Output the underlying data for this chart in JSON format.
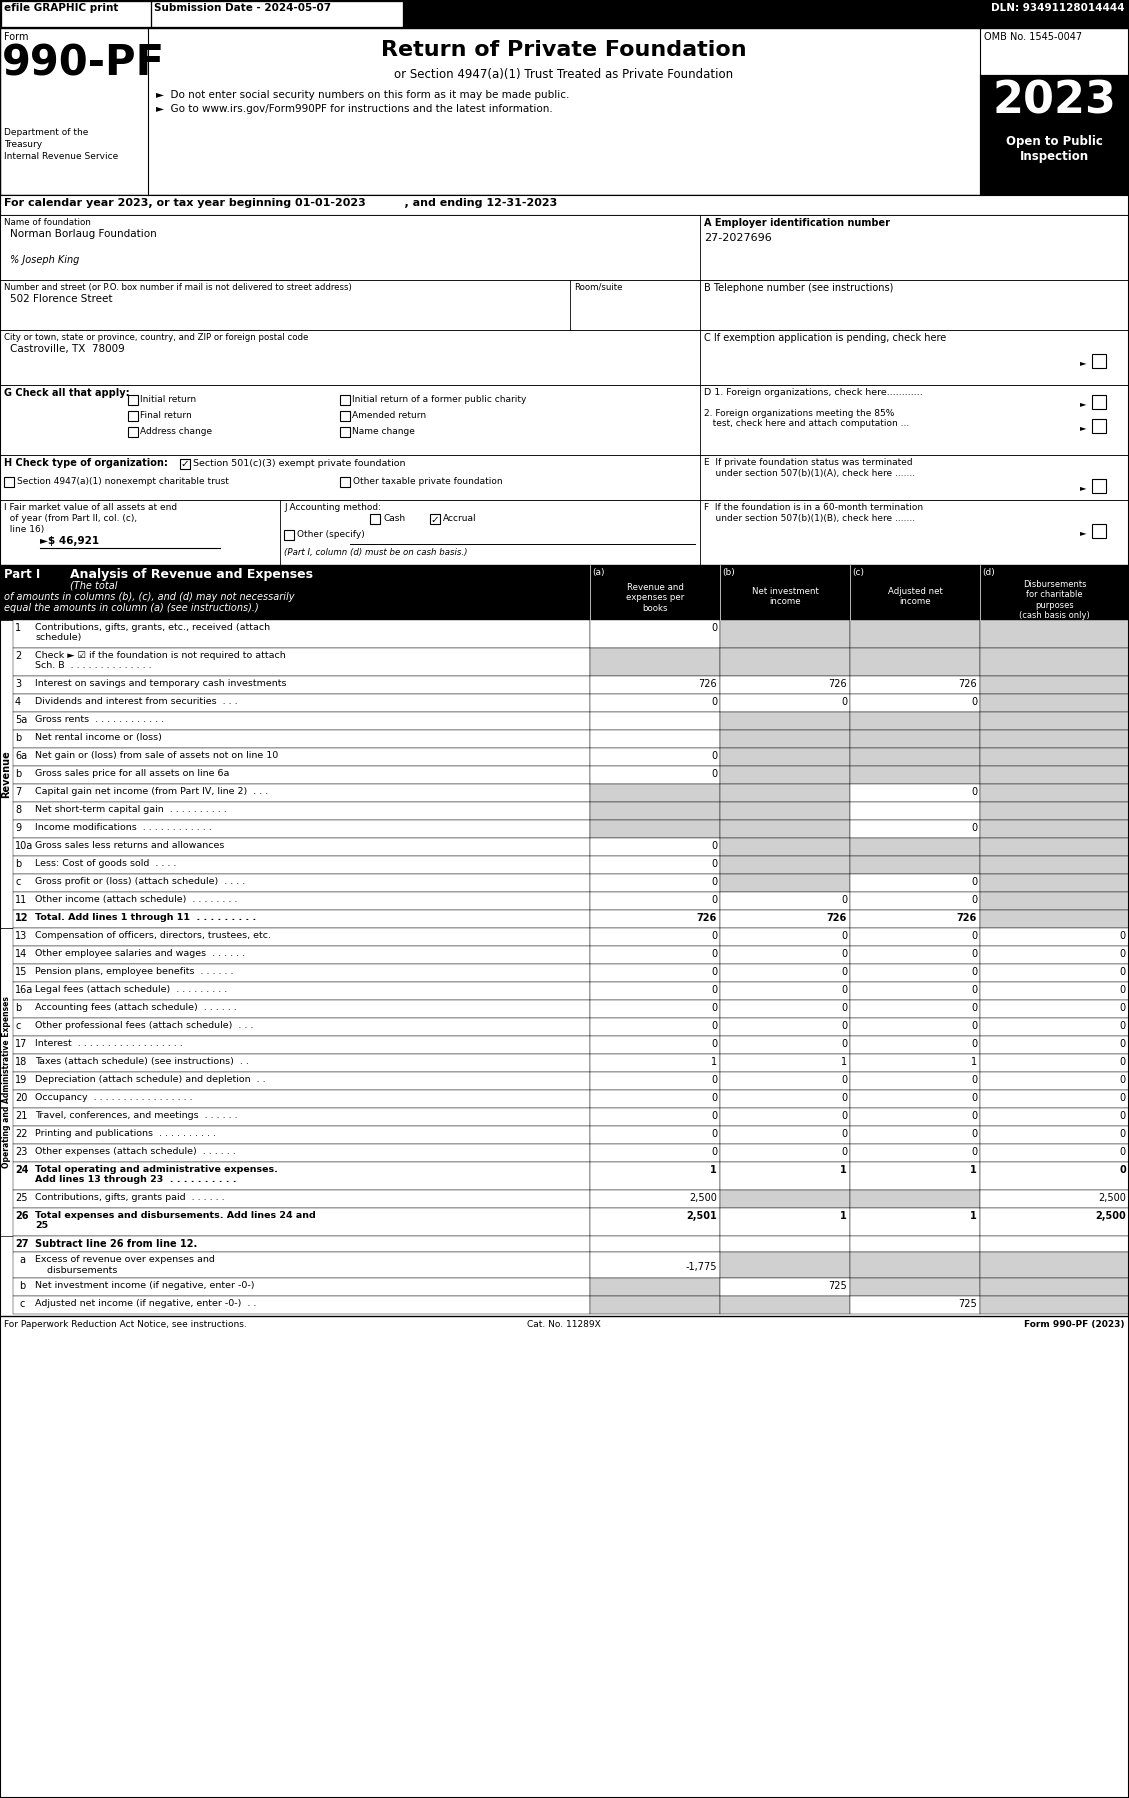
{
  "top_bar": {
    "efile": "efile GRAPHIC print",
    "submission": "Submission Date - 2024-05-07",
    "dln": "DLN: 93491128014444"
  },
  "form_number": "990-PF",
  "form_label": "Form",
  "form_title": "Return of Private Foundation",
  "form_subtitle": "or Section 4947(a)(1) Trust Treated as Private Foundation",
  "bullet1": "►  Do not enter social security numbers on this form as it may be made public.",
  "bullet2": "►  Go to www.irs.gov/Form990PF for instructions and the latest information.",
  "dept1": "Department of the",
  "dept2": "Treasury",
  "dept3": "Internal Revenue Service",
  "omb": "OMB No. 1545-0047",
  "year": "2023",
  "open_public": "Open to Public",
  "inspection": "Inspection",
  "calendar_line": "For calendar year 2023, or tax year beginning 01-01-2023          , and ending 12-31-2023",
  "name_label": "Name of foundation",
  "name_value": "Norman Borlaug Foundation",
  "care_of": "% Joseph King",
  "ein_label": "A Employer identification number",
  "ein_value": "27-2027696",
  "address_label": "Number and street (or P.O. box number if mail is not delivered to street address)",
  "room_label": "Room/suite",
  "address_value": "502 Florence Street",
  "phone_label": "B Telephone number (see instructions)",
  "city_label": "City or town, state or province, country, and ZIP or foreign postal code",
  "city_value": "Castroville, TX  78009",
  "exempt_label": "C If exemption application is pending, check here",
  "g_label": "G Check all that apply:",
  "d1_label": "D 1. Foreign organizations, check here............",
  "d2_label1": "2. Foreign organizations meeting the 85%",
  "d2_label2": "   test, check here and attach computation ...",
  "e_label1": "E  If private foundation status was terminated",
  "e_label2": "    under section 507(b)(1)(A), check here .......",
  "h_label": "H Check type of organization:",
  "i_label1": "I Fair market value of all assets at end",
  "i_label2": "  of year (from Part II, col. (c),",
  "i_label3": "  line 16)",
  "i_value": "►$ 46,921",
  "j_label": "J Accounting method:",
  "j_note": "(Part I, column (d) must be on cash basis.)",
  "f_label1": "F  If the foundation is in a 60-month termination",
  "f_label2": "    under section 507(b)(1)(B), check here .......",
  "part1_label": "Part I",
  "part1_title": "Analysis of Revenue and Expenses",
  "part1_sub1": "(The total",
  "part1_sub2": "of amounts in columns (b), (c), and (d) may not necessarily",
  "part1_sub3": "equal the amounts in column (a) (see instructions).)",
  "col_a_lbl": "(a)",
  "col_a": "Revenue and\nexpenses per\nbooks",
  "col_b_lbl": "(b)",
  "col_b": "Net investment\nincome",
  "col_c_lbl": "(c)",
  "col_c": "Adjusted net\nincome",
  "col_d_lbl": "(d)",
  "col_d": "Disbursements\nfor charitable\npurposes\n(cash basis only)",
  "revenue_label": "Revenue",
  "expenses_label": "Operating and Administrative Expenses",
  "rows": [
    {
      "num": "1",
      "label": "Contributions, gifts, grants, etc., received (attach\nschedule)",
      "a": "0",
      "b": "",
      "c": "",
      "d": "",
      "sb": true,
      "sc": true,
      "sd": true,
      "tall": true
    },
    {
      "num": "2",
      "label": "Check ► ☑ if the foundation is not required to attach\nSch. B  . . . . . . . . . . . . . .",
      "a": "",
      "b": "",
      "c": "",
      "d": "",
      "sa": true,
      "sb": true,
      "sc": true,
      "sd": true,
      "tall": true
    },
    {
      "num": "3",
      "label": "Interest on savings and temporary cash investments",
      "a": "726",
      "b": "726",
      "c": "726",
      "d": "",
      "sd": true
    },
    {
      "num": "4",
      "label": "Dividends and interest from securities  . . .",
      "a": "0",
      "b": "0",
      "c": "0",
      "d": "",
      "sd": true
    },
    {
      "num": "5a",
      "label": "Gross rents  . . . . . . . . . . . .",
      "a": "",
      "b": "",
      "c": "",
      "d": "",
      "sb": true,
      "sc": true,
      "sd": true
    },
    {
      "num": "b",
      "label": "Net rental income or (loss)",
      "a": "",
      "b": "",
      "c": "",
      "d": "",
      "sb": true,
      "sc": true,
      "sd": true
    },
    {
      "num": "6a",
      "label": "Net gain or (loss) from sale of assets not on line 10",
      "a": "0",
      "b": "",
      "c": "",
      "d": "",
      "sb": true,
      "sc": true,
      "sd": true
    },
    {
      "num": "b",
      "label": "Gross sales price for all assets on line 6a",
      "a": "0",
      "b": "",
      "c": "",
      "d": "",
      "sb": true,
      "sc": true,
      "sd": true
    },
    {
      "num": "7",
      "label": "Capital gain net income (from Part IV, line 2)  . . .",
      "a": "",
      "b": "",
      "c": "0",
      "d": "",
      "sa": true,
      "sb": true,
      "sd": true
    },
    {
      "num": "8",
      "label": "Net short-term capital gain  . . . . . . . . . .",
      "a": "",
      "b": "",
      "c": "",
      "d": "",
      "sa": true,
      "sb": true,
      "sd": true
    },
    {
      "num": "9",
      "label": "Income modifications  . . . . . . . . . . . .",
      "a": "",
      "b": "",
      "c": "0",
      "d": "",
      "sa": true,
      "sb": true,
      "sd": true
    },
    {
      "num": "10a",
      "label": "Gross sales less returns and allowances",
      "a": "0",
      "b": "",
      "c": "",
      "d": "",
      "sb": true,
      "sc": true,
      "sd": true
    },
    {
      "num": "b",
      "label": "Less: Cost of goods sold  . . . .",
      "a": "0",
      "b": "",
      "c": "",
      "d": "",
      "sb": true,
      "sc": true,
      "sd": true
    },
    {
      "num": "c",
      "label": "Gross profit or (loss) (attach schedule)  . . . .",
      "a": "0",
      "b": "",
      "c": "0",
      "d": "",
      "sb": true,
      "sd": true
    },
    {
      "num": "11",
      "label": "Other income (attach schedule)  . . . . . . . .",
      "a": "0",
      "b": "0",
      "c": "0",
      "d": "",
      "sd": true
    },
    {
      "num": "12",
      "label": "Total. Add lines 1 through 11  . . . . . . . . .",
      "a": "726",
      "b": "726",
      "c": "726",
      "d": "",
      "sd": true,
      "bold": true
    },
    {
      "num": "13",
      "label": "Compensation of officers, directors, trustees, etc.",
      "a": "0",
      "b": "0",
      "c": "0",
      "d": "0"
    },
    {
      "num": "14",
      "label": "Other employee salaries and wages  . . . . . .",
      "a": "0",
      "b": "0",
      "c": "0",
      "d": "0"
    },
    {
      "num": "15",
      "label": "Pension plans, employee benefits  . . . . . .",
      "a": "0",
      "b": "0",
      "c": "0",
      "d": "0"
    },
    {
      "num": "16a",
      "label": "Legal fees (attach schedule)  . . . . . . . . .",
      "a": "0",
      "b": "0",
      "c": "0",
      "d": "0"
    },
    {
      "num": "b",
      "label": "Accounting fees (attach schedule)  . . . . . .",
      "a": "0",
      "b": "0",
      "c": "0",
      "d": "0"
    },
    {
      "num": "c",
      "label": "Other professional fees (attach schedule)  . . .",
      "a": "0",
      "b": "0",
      "c": "0",
      "d": "0"
    },
    {
      "num": "17",
      "label": "Interest  . . . . . . . . . . . . . . . . . .",
      "a": "0",
      "b": "0",
      "c": "0",
      "d": "0"
    },
    {
      "num": "18",
      "label": "Taxes (attach schedule) (see instructions)  . .",
      "a": "1",
      "b": "1",
      "c": "1",
      "d": "0"
    },
    {
      "num": "19",
      "label": "Depreciation (attach schedule) and depletion  . .",
      "a": "0",
      "b": "0",
      "c": "0",
      "d": "0"
    },
    {
      "num": "20",
      "label": "Occupancy  . . . . . . . . . . . . . . . . .",
      "a": "0",
      "b": "0",
      "c": "0",
      "d": "0"
    },
    {
      "num": "21",
      "label": "Travel, conferences, and meetings  . . . . . .",
      "a": "0",
      "b": "0",
      "c": "0",
      "d": "0"
    },
    {
      "num": "22",
      "label": "Printing and publications  . . . . . . . . . .",
      "a": "0",
      "b": "0",
      "c": "0",
      "d": "0"
    },
    {
      "num": "23",
      "label": "Other expenses (attach schedule)  . . . . . .",
      "a": "0",
      "b": "0",
      "c": "0",
      "d": "0"
    },
    {
      "num": "24",
      "label": "Total operating and administrative expenses.\nAdd lines 13 through 23  . . . . . . . . . .",
      "a": "1",
      "b": "1",
      "c": "1",
      "d": "0",
      "bold": true,
      "tall": true
    },
    {
      "num": "25",
      "label": "Contributions, gifts, grants paid  . . . . . .",
      "a": "2,500",
      "b": "",
      "c": "",
      "d": "2,500",
      "sb": true,
      "sc": true
    },
    {
      "num": "26",
      "label": "Total expenses and disbursements. Add lines 24 and\n25",
      "a": "2,501",
      "b": "1",
      "c": "1",
      "d": "2,500",
      "bold": true,
      "tall": true
    }
  ],
  "row27a_val": "-1,775",
  "row27b_val": "725",
  "row27c_val": "725",
  "footer_left": "For Paperwork Reduction Act Notice, see instructions.",
  "footer_cat": "Cat. No. 11289X",
  "footer_right": "Form 990-PF (2023)"
}
